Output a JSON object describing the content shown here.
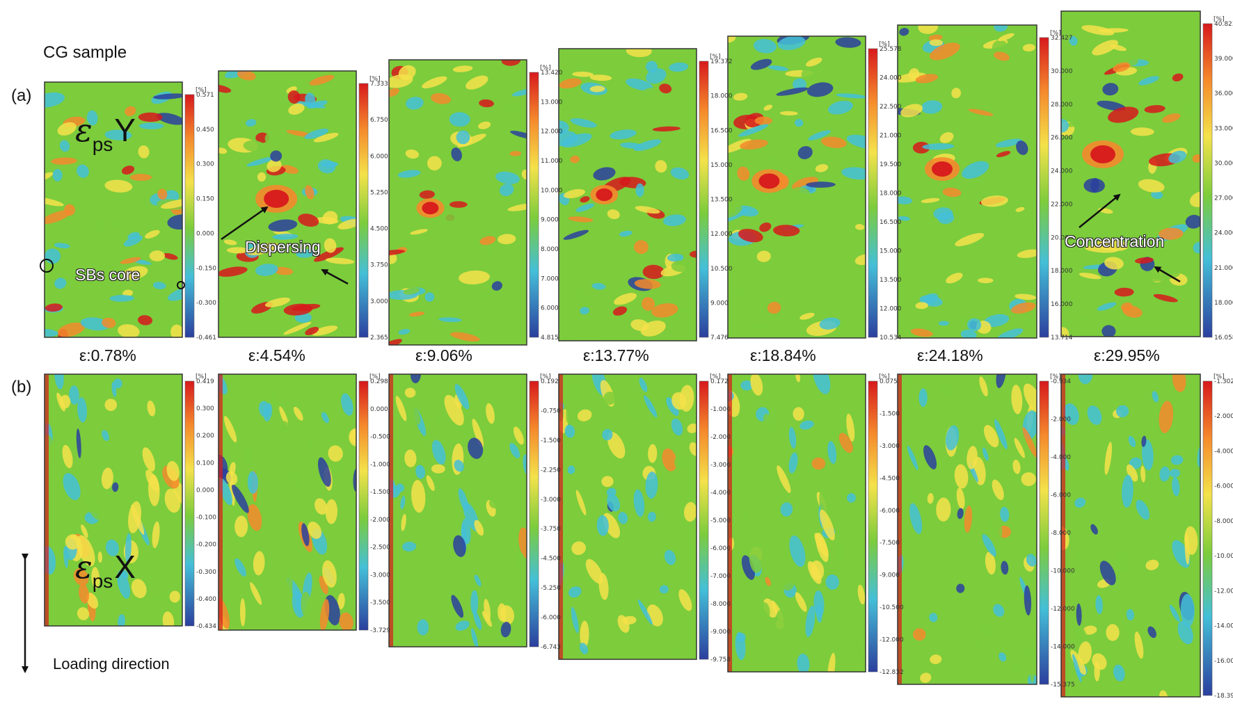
{
  "figure": {
    "sample_label": "CG sample",
    "row_a_label": "(a)",
    "row_b_label": "(b)",
    "strains": [
      "ε:0.78%",
      "ε:4.54%",
      "ε:9.06%",
      "ε:13.77%",
      "ε:18.84%",
      "ε:24.18%",
      "ε:29.95%"
    ],
    "symbol_y": {
      "epsilon": "ε",
      "sub": "ps",
      "axis": "Y"
    },
    "symbol_x": {
      "epsilon": "ε",
      "sub": "ps",
      "axis": "X"
    },
    "annotations": {
      "sbs_core": "SBs core",
      "dispersing": "Dispersing",
      "concentration": "Concentration",
      "loading_direction": "Loading direction"
    },
    "colorbar_unit": "[%]",
    "colors": {
      "red": "#d7191c",
      "orange": "#f58a2c",
      "yellow": "#f4e24a",
      "green": "#7ccc3c",
      "cyan": "#44bfd8",
      "blue": "#2b3f9e"
    }
  },
  "row_a_colorbars": [
    [
      "0.571",
      "0.450",
      "0.300",
      "0.150",
      "0.000",
      "-0.150",
      "-0.300",
      "-0.461"
    ],
    [
      "7.333",
      "6.750",
      "6.000",
      "5.250",
      "4.500",
      "3.750",
      "3.000",
      "2.365"
    ],
    [
      "13.420",
      "13.000",
      "12.000",
      "11.000",
      "10.000",
      "9.000",
      "8.000",
      "7.000",
      "6.000",
      "4.815"
    ],
    [
      "19.372",
      "18.000",
      "16.500",
      "15.000",
      "13.500",
      "12.000",
      "10.500",
      "9.000",
      "7.476"
    ],
    [
      "25.578",
      "24.000",
      "22.500",
      "21.000",
      "19.500",
      "18.000",
      "16.500",
      "15.000",
      "13.500",
      "12.000",
      "10.534"
    ],
    [
      "32.427",
      "30.000",
      "28.000",
      "26.000",
      "24.000",
      "22.000",
      "20.000",
      "18.000",
      "16.000",
      "13.714"
    ],
    [
      "40.823",
      "39.000",
      "36.000",
      "33.000",
      "30.000",
      "27.000",
      "24.000",
      "21.000",
      "18.000",
      "16.058"
    ]
  ],
  "row_b_colorbars": [
    [
      "0.419",
      "0.300",
      "0.200",
      "0.100",
      "0.000",
      "-0.100",
      "-0.200",
      "-0.300",
      "-0.400",
      "-0.434"
    ],
    [
      "0.298",
      "0.000",
      "-0.500",
      "-1.000",
      "-1.500",
      "-2.000",
      "-2.500",
      "-3.000",
      "-3.500",
      "-3.729"
    ],
    [
      "0.192",
      "-0.750",
      "-1.500",
      "-2.250",
      "-3.000",
      "-3.750",
      "-4.500",
      "-5.250",
      "-6.000",
      "-6.743"
    ],
    [
      "0.172",
      "-1.000",
      "-2.000",
      "-3.000",
      "-4.000",
      "-5.000",
      "-6.000",
      "-7.000",
      "-8.000",
      "-9.000",
      "-9.758"
    ],
    [
      "0.075",
      "-1.500",
      "-3.000",
      "-4.500",
      "-6.000",
      "-7.500",
      "-9.000",
      "-10.500",
      "-12.000",
      "-12.832"
    ],
    [
      "-0.934",
      "-2.000",
      "-4.000",
      "-6.000",
      "-8.000",
      "-10.000",
      "-12.000",
      "-14.000",
      "-15.375"
    ],
    [
      "-1.302",
      "-2.000",
      "-4.000",
      "-6.000",
      "-8.000",
      "-10.000",
      "-12.000",
      "-14.000",
      "-16.000",
      "-18.391"
    ]
  ]
}
